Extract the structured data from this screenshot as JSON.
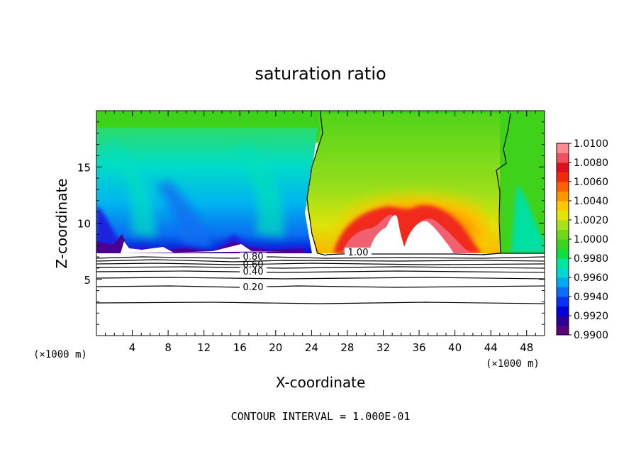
{
  "chart_data": {
    "type": "heatmap",
    "title": "saturation ratio",
    "xlabel": "X-coordinate",
    "ylabel": "Z-coordinate",
    "x_unit": "(×1000 m)",
    "y_unit": "(×1000 m)",
    "xlim": [
      0,
      50
    ],
    "ylim": [
      0,
      20
    ],
    "x_ticks": [
      "4",
      "8",
      "12",
      "16",
      "20",
      "24",
      "28",
      "32",
      "36",
      "40",
      "44",
      "48"
    ],
    "y_ticks": [
      "5",
      "10",
      "15"
    ],
    "contour_labels": [
      "1.00",
      "0.80",
      "0.60",
      "0.40",
      "0.20"
    ],
    "footnote": "CONTOUR INTERVAL = 1.000E-01",
    "colorbar": {
      "labels": [
        "1.0100",
        "1.0080",
        "1.0060",
        "1.0040",
        "1.0020",
        "1.0000",
        "0.9980",
        "0.9960",
        "0.9940",
        "0.9920",
        "0.9900"
      ],
      "colors": [
        "#5a007a",
        "#2a0099",
        "#0000dd",
        "#0a30f0",
        "#0a6ef2",
        "#00aaf0",
        "#00d8d0",
        "#00e8a0",
        "#10dd40",
        "#3ed31a",
        "#6fd81a",
        "#a8e01a",
        "#e0e60a",
        "#ffc800",
        "#ff9600",
        "#ff6000",
        "#f02a0a",
        "#e01020",
        "#f05060",
        "#ff8c90"
      ]
    }
  }
}
